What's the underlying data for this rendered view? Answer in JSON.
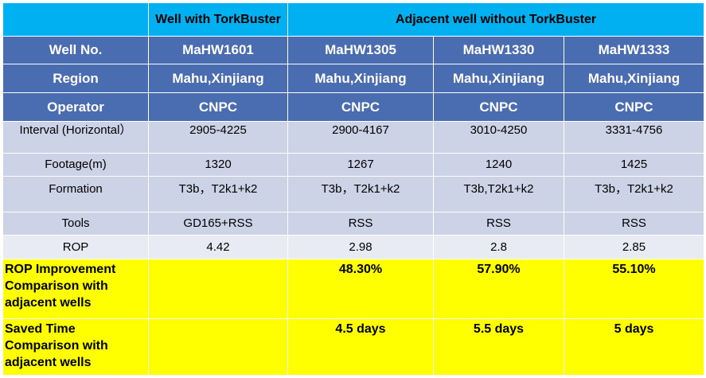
{
  "header": {
    "with_label": "Well with TorkBuster",
    "without_label": "Adjacent well without TorkBuster"
  },
  "rows": {
    "well_no": {
      "label": "Well No.",
      "values": [
        "MaHW1601",
        "MaHW1305",
        "MaHW1330",
        "MaHW1333"
      ]
    },
    "region": {
      "label": "Region",
      "values": [
        "Mahu,Xinjiang",
        "Mahu,Xinjiang",
        "Mahu,Xinjiang",
        "Mahu,Xinjiang"
      ]
    },
    "operator": {
      "label": "Operator",
      "values": [
        "CNPC",
        "CNPC",
        "CNPC",
        "CNPC"
      ]
    },
    "interval": {
      "label": "Interval (Horizontal）",
      "values": [
        "2905-4225",
        "2900-4167",
        "3010-4250",
        "3331-4756"
      ]
    },
    "footage": {
      "label": "Footage(m)",
      "values": [
        "1320",
        "1267",
        "1240",
        "1425"
      ]
    },
    "formation": {
      "label": "Formation",
      "values": [
        "T3b，T2k1+k2",
        "T3b，T2k1+k2",
        "T3b,T2k1+k2",
        "T3b，T2k1+k2"
      ]
    },
    "tools": {
      "label": "Tools",
      "values": [
        "GD165+RSS",
        "RSS",
        "RSS",
        "RSS"
      ]
    },
    "rop": {
      "label": "ROP",
      "values": [
        "4.42",
        "2.98",
        "2.8",
        "2.85"
      ]
    },
    "rop_improvement": {
      "label": "ROP Improvement Comparison with adjacent wells",
      "values": [
        "",
        "48.30%",
        "57.90%",
        "55.10%"
      ]
    },
    "saved_time": {
      "label": "Saved Time Comparison with adjacent wells",
      "values": [
        "",
        "4.5 days",
        "5.5 days",
        "5 days"
      ]
    }
  },
  "colors": {
    "header_bg": "#00B0F0",
    "blue_row_bg": "#4A6CB0",
    "gray_row_bg": "#CDD3E6",
    "light_row_bg": "#E8EBF4",
    "highlight_bg": "#FFFF00"
  }
}
